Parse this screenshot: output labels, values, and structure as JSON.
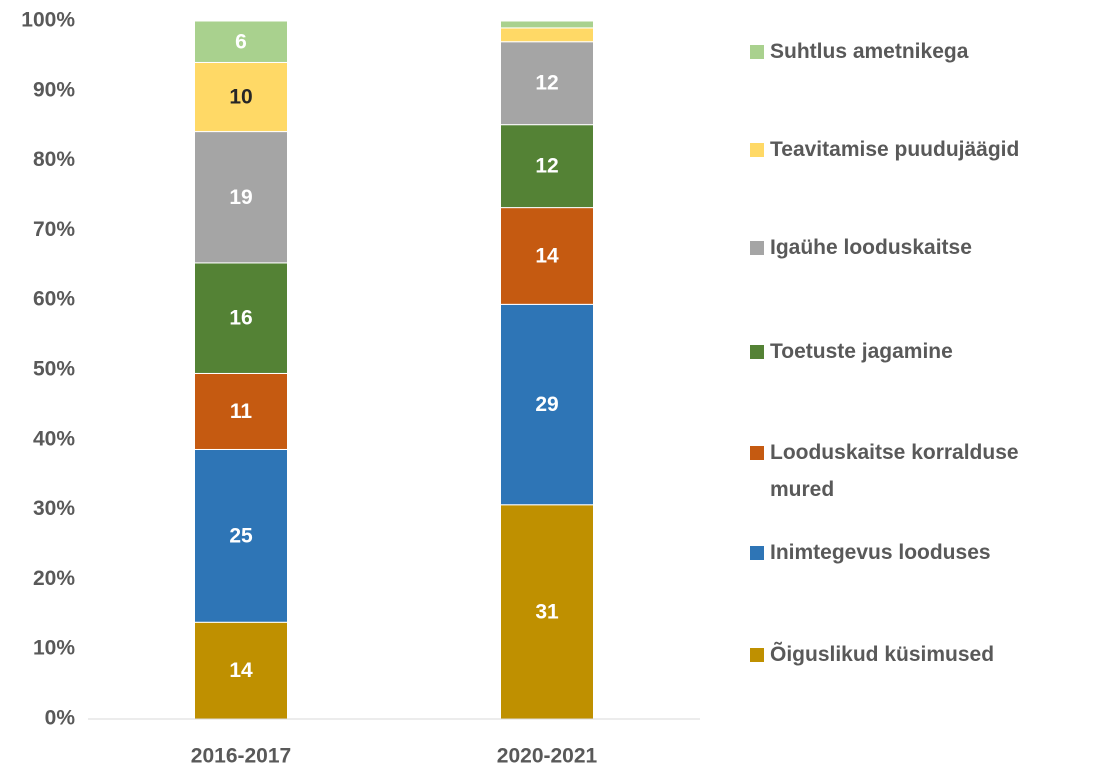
{
  "chart_data": {
    "type": "stacked_bar_100",
    "categories": [
      "2016-2017",
      "2020-2021"
    ],
    "series": [
      {
        "name": "Õiguslikud küsimused",
        "color": "#bf9000",
        "values": [
          14,
          31
        ]
      },
      {
        "name": "Inimtegevus looduses",
        "color": "#2e75b6",
        "values": [
          25,
          29
        ]
      },
      {
        "name": "Looduskaitse korralduse mured",
        "color": "#c55a11",
        "values": [
          11,
          14
        ]
      },
      {
        "name": "Toetuste jagamine",
        "color": "#548235",
        "values": [
          16,
          12
        ]
      },
      {
        "name": "Igaühe looduskaitse",
        "color": "#a5a5a5",
        "values": [
          19,
          12
        ]
      },
      {
        "name": "Teavitamise puudujäägid",
        "color": "#ffd966",
        "values": [
          10,
          2
        ]
      },
      {
        "name": "Suhtlus ametnikega",
        "color": "#a9d18e",
        "values": [
          6,
          1
        ]
      }
    ],
    "ylim": [
      0,
      100
    ],
    "yticks": [
      {
        "value": 0,
        "label": "0%"
      },
      {
        "value": 10,
        "label": "10%"
      },
      {
        "value": 20,
        "label": "20%"
      },
      {
        "value": 30,
        "label": "30%"
      },
      {
        "value": 40,
        "label": "40%"
      },
      {
        "value": 50,
        "label": "50%"
      },
      {
        "value": 60,
        "label": "60%"
      },
      {
        "value": 70,
        "label": "70%"
      },
      {
        "value": 80,
        "label": "80%"
      },
      {
        "value": 90,
        "label": "90%"
      },
      {
        "value": 100,
        "label": "100%"
      }
    ],
    "grid": false,
    "legend": "right"
  }
}
